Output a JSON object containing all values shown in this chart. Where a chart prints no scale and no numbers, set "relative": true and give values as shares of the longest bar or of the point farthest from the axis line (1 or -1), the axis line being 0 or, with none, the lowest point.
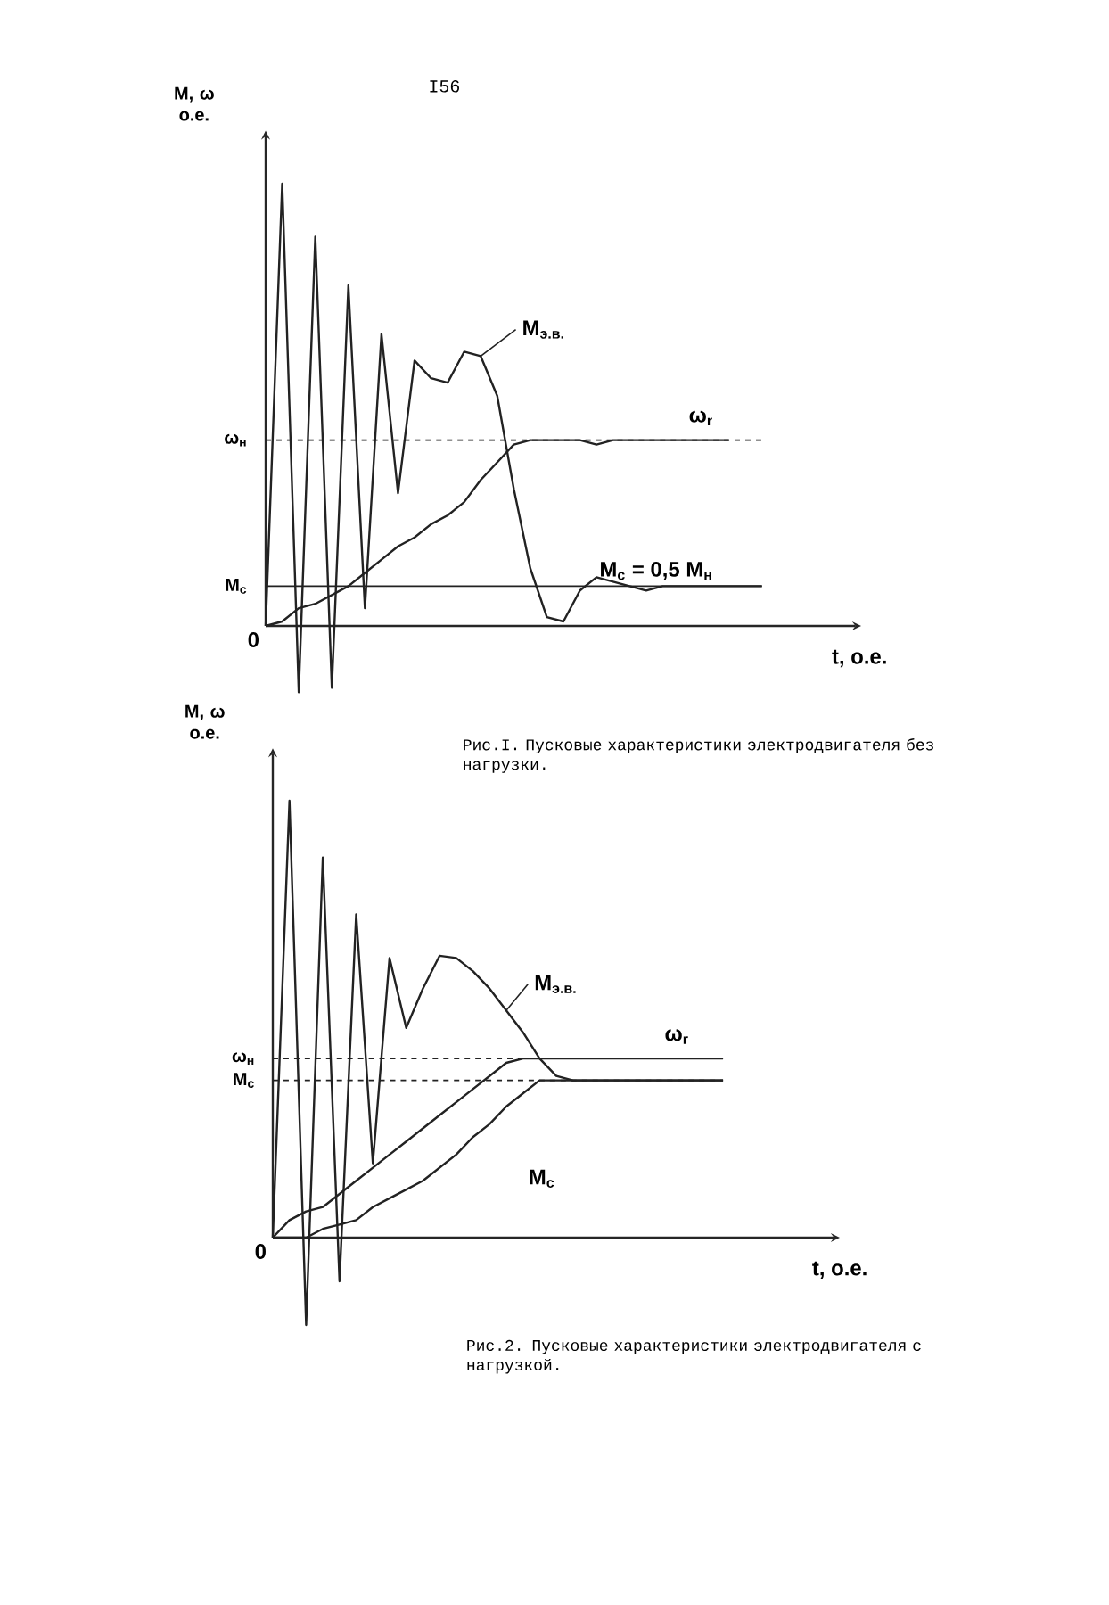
{
  "chart_data": [
    {
      "type": "line",
      "relative": true,
      "ylabel": "М, ω о.е.",
      "xlabel": "t, о.е.",
      "categories": [
        null,
        null,
        null,
        null,
        null,
        null,
        null,
        null,
        null,
        null,
        null,
        null,
        null,
        null,
        null,
        null,
        null,
        null,
        null,
        null,
        null,
        null,
        null,
        null,
        null,
        null,
        null,
        null,
        null,
        null,
        null
      ],
      "series": [
        {
          "name": "М$_{э.в.}$",
          "color": "#222222",
          "values": [
            0,
            1.0,
            -0.15,
            0.88,
            -0.14,
            0.77,
            0.04,
            0.66,
            0.3,
            0.6,
            0.56,
            0.55,
            0.62,
            0.61,
            0.52,
            0.31,
            0.13,
            0.02,
            0.01,
            0.08,
            0.11,
            0.1,
            0.09,
            0.08,
            0.09,
            0.09,
            0.09,
            0.09,
            0.09,
            0.09,
            0.09
          ]
        },
        {
          "name": "ω$_{r}$",
          "color": "#222222",
          "values": [
            0,
            0.01,
            0.04,
            0.05,
            0.07,
            0.09,
            0.12,
            0.15,
            0.18,
            0.2,
            0.23,
            0.25,
            0.28,
            0.33,
            0.37,
            0.41,
            0.42,
            0.42,
            0.42,
            0.42,
            0.41,
            0.42,
            0.42,
            0.42,
            0.42,
            0.42,
            0.42,
            0.42,
            0.42,
            null,
            null
          ]
        }
      ],
      "ref_lines": [
        {
          "axis": "y",
          "value": 0.42,
          "label": "ω$_{н}$",
          "line_style": "dashed",
          "color": "#222222"
        },
        {
          "axis": "y",
          "value": 0.09,
          "label": "М$_{с}$",
          "line_style": "solid",
          "color": "#222222"
        }
      ],
      "annotations": [
        "I56",
        "Рис.I. Пусковые характеристики электродвигателя без нагрузки.",
        {
          "text": "М$_{с}$ = 0,5 М$_{н}$",
          "y": 0.09
        },
        "0"
      ]
    },
    {
      "type": "line",
      "relative": true,
      "ylabel": "М, ω о.е.",
      "xlabel": "t, о.е.",
      "categories": [
        null,
        null,
        null,
        null,
        null,
        null,
        null,
        null,
        null,
        null,
        null,
        null,
        null,
        null,
        null,
        null,
        null,
        null,
        null,
        null,
        null,
        null,
        null,
        null,
        null,
        null,
        null,
        null
      ],
      "series": [
        {
          "name": "М$_{э.в.}$",
          "color": "#222222",
          "values": [
            0,
            1.0,
            -0.2,
            0.87,
            -0.1,
            0.74,
            0.17,
            0.64,
            0.48,
            0.57,
            0.645,
            0.64,
            0.61,
            0.57,
            0.52,
            0.47,
            0.41,
            0.37,
            0.36,
            0.36,
            0.36,
            0.36,
            0.36,
            0.36,
            0.36,
            0.36,
            0.36,
            0.36
          ]
        },
        {
          "name": "ω$_{r}$",
          "color": "#222222",
          "values": [
            0,
            0.04,
            0.06,
            0.07,
            0.1,
            0.13,
            0.16,
            0.19,
            0.22,
            0.25,
            0.28,
            0.31,
            0.34,
            0.37,
            0.4,
            0.41,
            0.41,
            0.41,
            0.41,
            0.41,
            0.41,
            0.41,
            0.41,
            0.41,
            0.41,
            0.41,
            0.41,
            0.41
          ]
        },
        {
          "name": "М$_{с}$",
          "color": "#222222",
          "values": [
            0,
            0,
            0,
            0.02,
            0.03,
            0.04,
            0.07,
            0.09,
            0.11,
            0.13,
            0.16,
            0.19,
            0.23,
            0.26,
            0.3,
            0.33,
            0.36,
            0.36,
            0.36,
            0.36,
            0.36,
            0.36,
            0.36,
            0.36,
            0.36,
            0.36,
            0.36,
            0.36
          ]
        }
      ],
      "ref_lines": [
        {
          "axis": "y",
          "value": 0.41,
          "label": "ω$_{н}$",
          "line_style": "dashed",
          "color": "#222222"
        },
        {
          "axis": "y",
          "value": 0.36,
          "label": "М$_{с}$",
          "line_style": "dashed",
          "color": "#222222"
        }
      ],
      "annotations": [
        "Рис.2. Пусковые характеристики электродвигателя с нагрузкой.",
        "0"
      ]
    }
  ]
}
